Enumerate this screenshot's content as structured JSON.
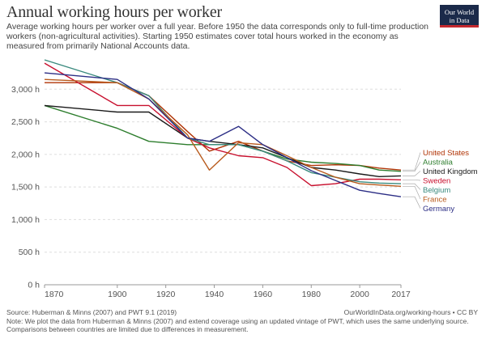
{
  "header": {
    "title": "Annual working hours per worker",
    "subtitle": "Average working hours per worker over a full year. Before 1950 the data corresponds only to full-time production workers (non-agricultural activities). Starting 1950 estimates cover total hours worked in the economy as measured from primarily National Accounts data."
  },
  "logo": {
    "line1": "Our World",
    "line2": "in Data"
  },
  "footer": {
    "source": "Source: Huberman & Minns (2007) and PWT 9.1 (2019)",
    "url": "OurWorldInData.org/working-hours • CC BY",
    "note": "Note: We plot the data from Huberman & Minns (2007) and extend coverage using an updated vintage of PWT, which uses the same underlying source. Comparisons between countries are limited due to differences in measurement."
  },
  "chart_data": {
    "type": "line",
    "ylim": [
      0,
      3500
    ],
    "yticks": [
      0,
      500,
      1000,
      1500,
      2000,
      2500,
      3000
    ],
    "ytick_labels": [
      "0 h",
      "500 h",
      "1,000 h",
      "1,500 h",
      "2,000 h",
      "2,500 h",
      "3,000 h"
    ],
    "xlim": [
      1870,
      2017
    ],
    "xticks": [
      1870,
      1900,
      1920,
      1940,
      1960,
      1980,
      2000,
      2017
    ],
    "xtick_labels": [
      "1870",
      "1900",
      "1920",
      "1940",
      "1960",
      "1980",
      "2000",
      "2017"
    ],
    "grid": "horizontal dotted",
    "legend_position": "right",
    "series": [
      {
        "name": "United States",
        "color": "#b13507",
        "points": [
          [
            1870,
            3100
          ],
          [
            1900,
            3100
          ],
          [
            1913,
            2900
          ],
          [
            1929,
            2350
          ],
          [
            1938,
            2050
          ],
          [
            1950,
            2200
          ],
          [
            1960,
            2050
          ],
          [
            1970,
            1900
          ],
          [
            1980,
            1830
          ],
          [
            1990,
            1840
          ],
          [
            2000,
            1830
          ],
          [
            2008,
            1790
          ],
          [
            2017,
            1760
          ]
        ]
      },
      {
        "name": "Australia",
        "color": "#2d7d2d",
        "points": [
          [
            1870,
            2750
          ],
          [
            1900,
            2400
          ],
          [
            1913,
            2200
          ],
          [
            1929,
            2150
          ],
          [
            1938,
            2150
          ],
          [
            1950,
            2150
          ],
          [
            1960,
            2050
          ],
          [
            1970,
            1930
          ],
          [
            1980,
            1880
          ],
          [
            1990,
            1860
          ],
          [
            2000,
            1830
          ],
          [
            2008,
            1760
          ],
          [
            2017,
            1740
          ]
        ]
      },
      {
        "name": "United Kingdom",
        "color": "#1a1a1a",
        "points": [
          [
            1870,
            2750
          ],
          [
            1900,
            2650
          ],
          [
            1913,
            2650
          ],
          [
            1929,
            2250
          ],
          [
            1938,
            2200
          ],
          [
            1950,
            2150
          ],
          [
            1960,
            2100
          ],
          [
            1970,
            1950
          ],
          [
            1980,
            1800
          ],
          [
            1990,
            1760
          ],
          [
            2000,
            1700
          ],
          [
            2008,
            1660
          ],
          [
            2017,
            1670
          ]
        ]
      },
      {
        "name": "Sweden",
        "color": "#c8102e",
        "points": [
          [
            1870,
            3400
          ],
          [
            1900,
            2750
          ],
          [
            1913,
            2750
          ],
          [
            1929,
            2250
          ],
          [
            1938,
            2100
          ],
          [
            1950,
            1980
          ],
          [
            1960,
            1950
          ],
          [
            1970,
            1800
          ],
          [
            1980,
            1520
          ],
          [
            1990,
            1550
          ],
          [
            2000,
            1620
          ],
          [
            2008,
            1620
          ],
          [
            2017,
            1610
          ]
        ]
      },
      {
        "name": "Belgium",
        "color": "#3a8a7e",
        "points": [
          [
            1870,
            3450
          ],
          [
            1900,
            3100
          ],
          [
            1913,
            2900
          ],
          [
            1929,
            2250
          ],
          [
            1938,
            2150
          ],
          [
            1950,
            2150
          ],
          [
            1960,
            2050
          ],
          [
            1970,
            1900
          ],
          [
            1980,
            1720
          ],
          [
            1990,
            1650
          ],
          [
            2000,
            1580
          ],
          [
            2008,
            1560
          ],
          [
            2017,
            1550
          ]
        ]
      },
      {
        "name": "France",
        "color": "#b85a1c",
        "points": [
          [
            1870,
            3150
          ],
          [
            1900,
            3100
          ],
          [
            1913,
            2850
          ],
          [
            1929,
            2300
          ],
          [
            1938,
            1760
          ],
          [
            1950,
            2180
          ],
          [
            1960,
            2150
          ],
          [
            1970,
            1980
          ],
          [
            1980,
            1800
          ],
          [
            1990,
            1650
          ],
          [
            2000,
            1550
          ],
          [
            2008,
            1530
          ],
          [
            2017,
            1510
          ]
        ]
      },
      {
        "name": "Germany",
        "color": "#2c2e85",
        "points": [
          [
            1870,
            3250
          ],
          [
            1900,
            3150
          ],
          [
            1913,
            2850
          ],
          [
            1929,
            2250
          ],
          [
            1938,
            2200
          ],
          [
            1950,
            2430
          ],
          [
            1960,
            2150
          ],
          [
            1970,
            1950
          ],
          [
            1980,
            1750
          ],
          [
            1990,
            1600
          ],
          [
            2000,
            1450
          ],
          [
            2008,
            1400
          ],
          [
            2017,
            1350
          ]
        ]
      }
    ]
  }
}
